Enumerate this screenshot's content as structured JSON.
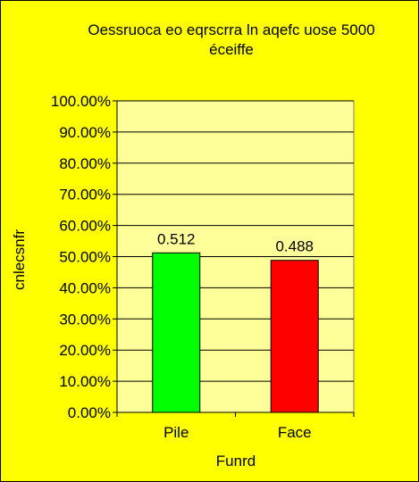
{
  "chart_data": {
    "type": "bar",
    "title": "Oessruoca eo eqrscrra ln aqefc uose 5000 éceiffe",
    "title_lines": [
      "Oessruoca eo eqrscrra ln aqefc uose 5000",
      "éceiffe"
    ],
    "xlabel": "Funrd",
    "ylabel": "cnlecsnfr",
    "categories": [
      "Pile",
      "Face"
    ],
    "values": [
      0.512,
      0.488
    ],
    "data_labels": [
      "0.512",
      "0.488"
    ],
    "bar_colors": [
      "#00ff00",
      "#ff0000"
    ],
    "ylim": [
      0,
      1
    ],
    "yticks": [
      0,
      0.1,
      0.2,
      0.3,
      0.4,
      0.5,
      0.6,
      0.7,
      0.8,
      0.9,
      1.0
    ],
    "ytick_labels": [
      "0.00%",
      "10.00%",
      "20.00%",
      "30.00%",
      "40.00%",
      "50.00%",
      "60.00%",
      "70.00%",
      "80.00%",
      "90.00%",
      "100.00%"
    ],
    "grid": true,
    "legend": "none",
    "colors": {
      "background": "#ffff00",
      "plot_area": "#ffff99",
      "gridline": "#000000"
    }
  }
}
